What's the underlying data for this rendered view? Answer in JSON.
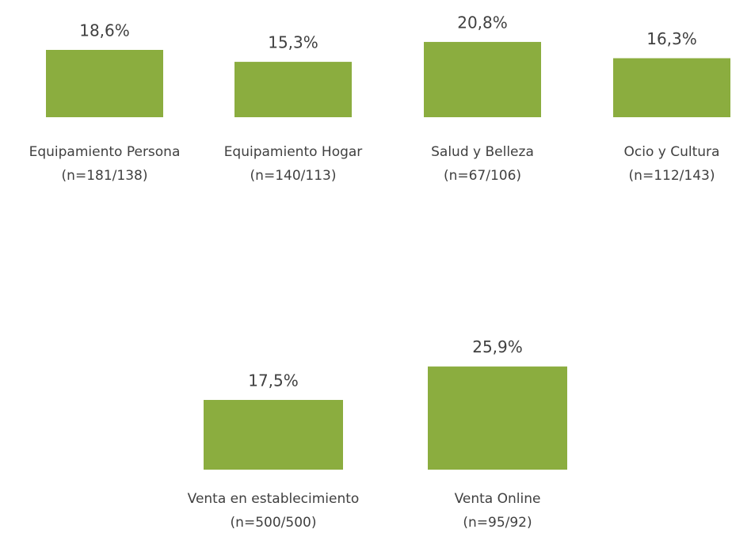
{
  "chart_data": [
    {
      "type": "bar",
      "color": "#8bad3f",
      "categories": [
        "Equipamiento Persona",
        "Equipamiento Hogar",
        "Salud y Belleza",
        "Ocio y Cultura"
      ],
      "sample_labels": [
        "(n=181/138)",
        "(n=140/113)",
        "(n=67/106)",
        "(n=112/143)"
      ],
      "values": [
        18.6,
        15.3,
        20.8,
        16.3
      ],
      "value_labels": [
        "18,6%",
        "15,3%",
        "20,8%",
        "16,3%"
      ]
    },
    {
      "type": "bar",
      "color": "#8bad3f",
      "categories": [
        "Venta en establecimiento",
        "Venta Online"
      ],
      "sample_labels": [
        "(n=500/500)",
        "(n=95/92)"
      ],
      "values": [
        17.5,
        25.9
      ],
      "value_labels": [
        "17,5%",
        "25,9%"
      ]
    }
  ]
}
